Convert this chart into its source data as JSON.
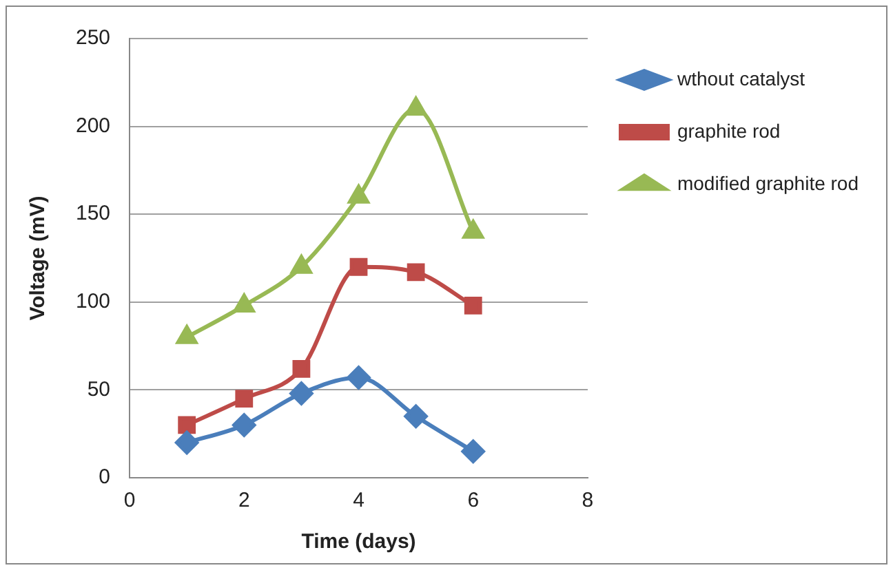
{
  "chart_data": {
    "type": "line",
    "xlabel": "Time (days)",
    "ylabel": "Voltage (mV)",
    "x": [
      1,
      2,
      3,
      4,
      5,
      6
    ],
    "series": [
      {
        "name": "wthout catalyst",
        "color": "#4a7ebb",
        "marker": "diamond",
        "values": [
          20,
          30,
          48,
          57,
          35,
          15
        ]
      },
      {
        "name": "graphite rod",
        "color": "#be4b48",
        "marker": "square",
        "values": [
          30,
          45,
          62,
          120,
          117,
          98
        ]
      },
      {
        "name": "modified graphite rod",
        "color": "#98b954",
        "marker": "triangle",
        "values": [
          80,
          98,
          120,
          160,
          210,
          140
        ]
      }
    ],
    "xlim": [
      0,
      8
    ],
    "xticks": [
      0,
      2,
      4,
      6,
      8
    ],
    "ylim": [
      0,
      250
    ],
    "yticks": [
      0,
      50,
      100,
      150,
      200,
      250
    ],
    "grid": "y",
    "legend": "right"
  }
}
